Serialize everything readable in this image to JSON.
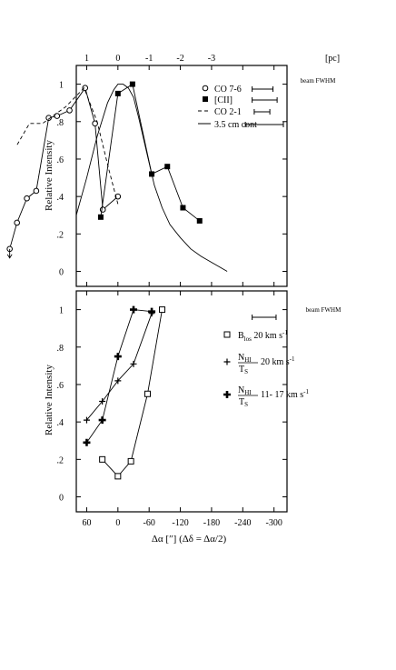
{
  "chart_data": [
    {
      "type": "line",
      "panel": "top",
      "ylabel": "Relative Intensity",
      "xlim": [
        80,
        -325
      ],
      "ylim": [
        -0.08,
        1.1
      ],
      "yticks": [
        0,
        0.2,
        0.4,
        0.6,
        0.8,
        1
      ],
      "ytick_labels": [
        "0",
        ".2",
        ".4",
        ".6",
        ".8",
        "1"
      ],
      "top_axis": {
        "unit": "[pc]",
        "ticks": [
          {
            "x": 60,
            "label": "1"
          },
          {
            "x": 0,
            "label": "0"
          },
          {
            "x": -60,
            "label": "-1"
          },
          {
            "x": -120,
            "label": "-2"
          },
          {
            "x": -180,
            "label": "-3"
          }
        ]
      },
      "beam_title": "beam FWHM",
      "beams": [
        {
          "series": "co76",
          "x1": -258,
          "x2": -298
        },
        {
          "series": "cii",
          "x1": -258,
          "x2": -306
        },
        {
          "series": "co21",
          "x1": -262,
          "x2": -292
        },
        {
          "series": "cont",
          "x1": -245,
          "x2": -318
        }
      ],
      "series": [
        {
          "id": "co76",
          "name": "CO 7-6",
          "marker": "open-circle",
          "line": "solid",
          "x": [
            0,
            29,
            44,
            63,
            93,
            117,
            133,
            157,
            175,
            194,
            208
          ],
          "y": [
            0.4,
            0.33,
            0.79,
            0.98,
            0.86,
            0.83,
            0.82,
            0.43,
            0.39,
            0.26,
            0.12
          ]
        },
        {
          "id": "cii",
          "name": "[CII]",
          "marker": "filled-square",
          "line": "solid",
          "x": [
            33,
            0,
            -28,
            -65,
            -95,
            -125,
            -157
          ],
          "y": [
            0.29,
            0.95,
            1.0,
            0.52,
            0.56,
            0.34,
            0.27
          ]
        },
        {
          "id": "co21",
          "name": "CO 2-1",
          "marker": "none",
          "line": "dashed",
          "x": [
            0,
            18,
            40,
            65,
            100,
            145,
            170,
            195
          ],
          "y": [
            0.36,
            0.55,
            0.8,
            0.98,
            0.88,
            0.79,
            0.79,
            0.67
          ]
        },
        {
          "id": "cont",
          "name": "3.5 cm cont",
          "marker": "none",
          "line": "solid",
          "x": [
            80,
            60,
            40,
            20,
            8,
            0,
            -10,
            -20,
            -30,
            -40,
            -55,
            -70,
            -85,
            -100,
            -120,
            -140,
            -160,
            -185,
            -210
          ],
          "y": [
            0.3,
            0.5,
            0.72,
            0.9,
            0.97,
            1.0,
            1.0,
            0.98,
            0.93,
            0.82,
            0.64,
            0.46,
            0.34,
            0.25,
            0.18,
            0.12,
            0.08,
            0.04,
            0.0
          ]
        }
      ],
      "annotations": [
        {
          "type": "down-arrow",
          "x": 208,
          "y": 0.12
        }
      ]
    },
    {
      "type": "line",
      "panel": "bottom",
      "ylabel": "Relative Intensity",
      "xlabel": "Δα [″]  (Δδ = Δα/2)",
      "xlim": [
        80,
        -325
      ],
      "ylim": [
        -0.08,
        1.1
      ],
      "xticks": [
        60,
        0,
        -60,
        -120,
        -180,
        -240,
        -300
      ],
      "xtick_labels": [
        "60",
        "0",
        "-60",
        "-120",
        "-180",
        "-240",
        "-300"
      ],
      "yticks": [
        0,
        0.2,
        0.4,
        0.6,
        0.8,
        1
      ],
      "ytick_labels": [
        "0",
        ".2",
        ".4",
        ".6",
        ".8",
        "1"
      ],
      "beam_title": "beam FWHM",
      "beams": [
        {
          "x1": -258,
          "x2": -304
        }
      ],
      "series": [
        {
          "id": "blos",
          "name": "B",
          "name_sub": "los",
          "name_suffix": " 20 km s",
          "name_sup": "-1",
          "marker": "open-square",
          "line": "solid",
          "x": [
            30,
            0,
            -25,
            -57,
            -85
          ],
          "y": [
            0.2,
            0.11,
            0.19,
            0.55,
            1.0
          ]
        },
        {
          "id": "nhi20",
          "frac_num": "N",
          "frac_num_sub": "HI",
          "frac_den": "T",
          "frac_den_sub": "S",
          "name_suffix": " 20 km s",
          "name_sup": "-1",
          "marker": "plus",
          "line": "solid",
          "x": [
            60,
            30,
            0,
            -30,
            -65
          ],
          "y": [
            0.41,
            0.51,
            0.62,
            0.71,
            0.98
          ]
        },
        {
          "id": "nhi1117",
          "frac_num": "N",
          "frac_num_sub": "HI",
          "frac_den": "T",
          "frac_den_sub": "S",
          "name_suffix": " 11- 17 km s",
          "name_sup": "-1",
          "marker": "bold-plus",
          "line": "solid",
          "x": [
            60,
            30,
            0,
            -30,
            -65
          ],
          "y": [
            0.29,
            0.41,
            0.75,
            1.0,
            0.99
          ]
        }
      ]
    }
  ]
}
